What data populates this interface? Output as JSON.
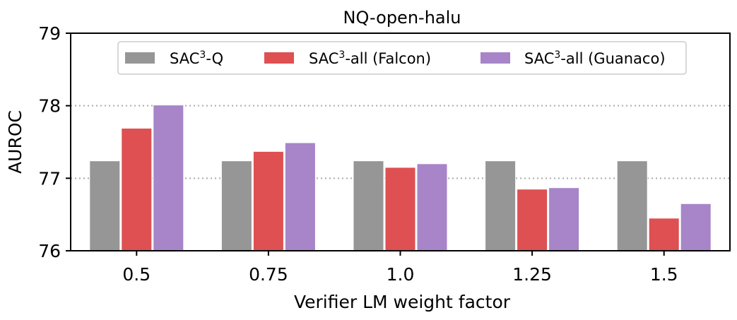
{
  "chart_data": {
    "type": "bar",
    "title": "NQ-open-halu",
    "xlabel": "Verifier LM weight factor",
    "ylabel": "AUROC",
    "categories": [
      "0.5",
      "0.75",
      "1.0",
      "1.25",
      "1.5"
    ],
    "ylim": [
      76,
      79
    ],
    "yticks": [
      "76",
      "77",
      "78",
      "79"
    ],
    "grid": "horizontal dotted at 77 and 78",
    "legend_position": "top-center",
    "series": [
      {
        "name": "SAC3-Q",
        "legend_base": "SAC",
        "legend_sup": "3",
        "legend_suffix": "-Q",
        "color": "#969696",
        "values": [
          77.24,
          77.24,
          77.24,
          77.24,
          77.24
        ]
      },
      {
        "name": "SAC3-all (Falcon)",
        "legend_base": "SAC",
        "legend_sup": "3",
        "legend_suffix": "-all (Falcon)",
        "color": "#de5052",
        "values": [
          77.69,
          77.37,
          77.15,
          76.85,
          76.45
        ]
      },
      {
        "name": "SAC3-all (Guanaco)",
        "legend_base": "SAC",
        "legend_sup": "3",
        "legend_suffix": "-all (Guanaco)",
        "color": "#a785c8",
        "values": [
          78.01,
          77.49,
          77.2,
          76.87,
          76.65
        ]
      }
    ]
  }
}
